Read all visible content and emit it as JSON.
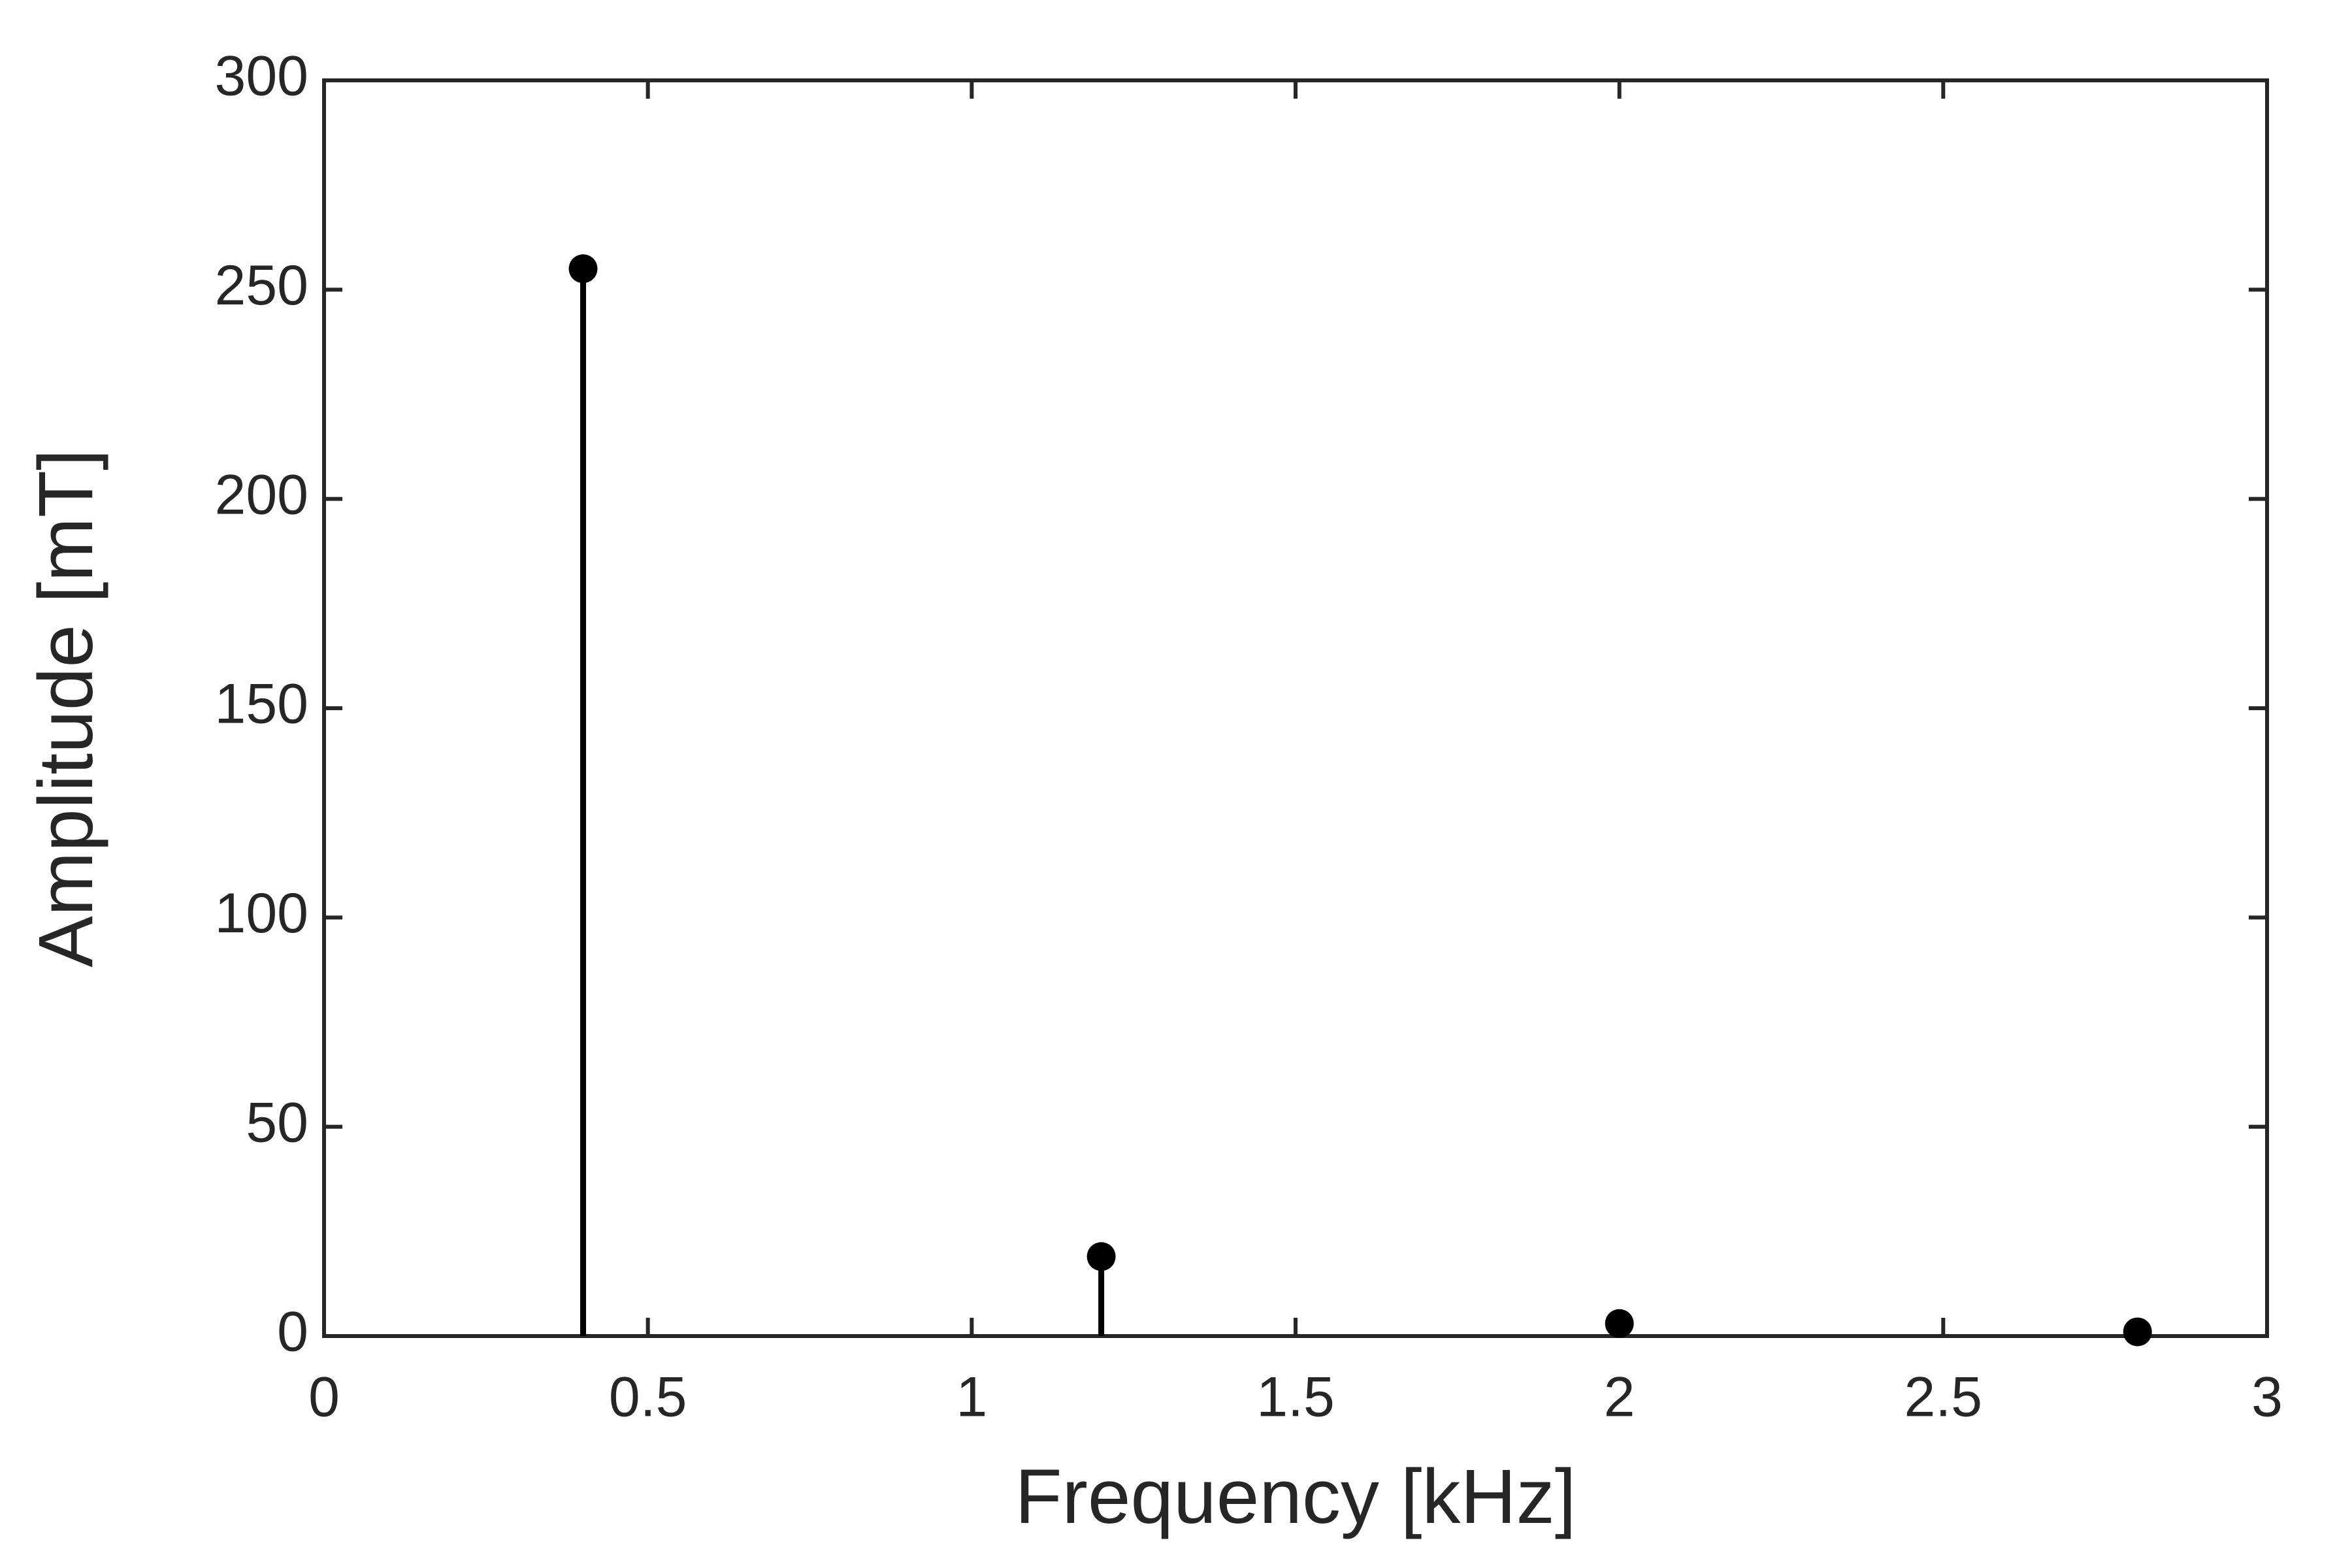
{
  "chart_data": {
    "type": "stem",
    "xlabel": "Frequency [kHz]",
    "ylabel": "Amplitude [mT]",
    "x": [
      0.4,
      1.2,
      2.0,
      2.8
    ],
    "values": [
      255,
      19,
      3,
      1
    ],
    "color": "#000000",
    "xlim": [
      0,
      3
    ],
    "xticks": [
      0,
      0.5,
      1,
      1.5,
      2,
      2.5,
      3
    ],
    "ylim": [
      0,
      300
    ],
    "yticks": [
      0,
      50,
      100,
      150,
      200,
      250,
      300
    ],
    "grid": false
  }
}
